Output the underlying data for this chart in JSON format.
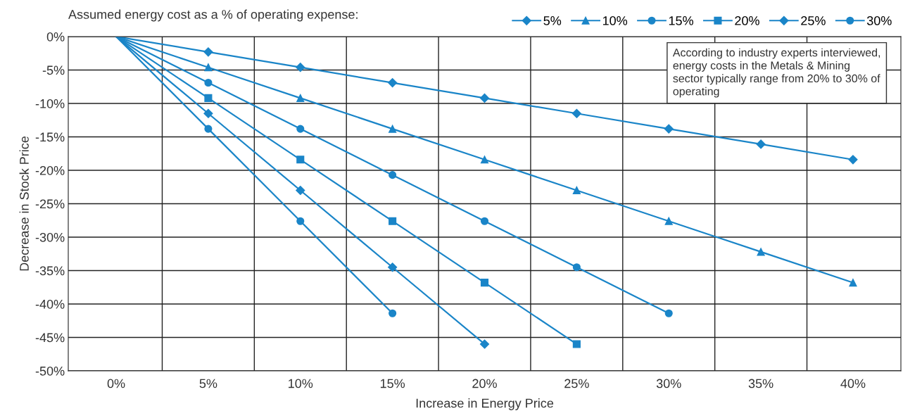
{
  "chart_data": {
    "type": "line",
    "legend_title": "Assumed energy cost as a % of operating expense:",
    "xlabel": "Increase in Energy Price",
    "ylabel": "Decrease in Stock Price",
    "categories": [
      "0%",
      "5%",
      "10%",
      "15%",
      "20%",
      "25%",
      "30%",
      "35%",
      "40%"
    ],
    "series": [
      {
        "name": "5%",
        "color": "#1a85c8",
        "marker": "diamond",
        "values": [
          0,
          -2.3,
          -4.6,
          -6.9,
          -9.2,
          -11.5,
          -13.8,
          -16.1,
          -18.4
        ]
      },
      {
        "name": "10%",
        "color": "#1a85c8",
        "marker": "triangle",
        "values": [
          0,
          -4.6,
          -9.2,
          -13.8,
          -18.4,
          -23,
          -27.6,
          -32.2,
          -36.8
        ]
      },
      {
        "name": "15%",
        "color": "#1a85c8",
        "marker": "circle",
        "values": [
          0,
          -6.9,
          -13.8,
          -20.7,
          -27.6,
          -34.5,
          -41.4,
          null,
          null
        ]
      },
      {
        "name": "20%",
        "color": "#1a85c8",
        "marker": "square",
        "values": [
          0,
          -9.2,
          -18.4,
          -27.6,
          -36.8,
          -46,
          null,
          null,
          null
        ]
      },
      {
        "name": "25%",
        "color": "#1a85c8",
        "marker": "diamond",
        "values": [
          0,
          -11.5,
          -23,
          -34.5,
          -46,
          null,
          null,
          null,
          null
        ]
      },
      {
        "name": "30%",
        "color": "#1a85c8",
        "marker": "circle",
        "values": [
          0,
          -13.8,
          -27.6,
          -41.4,
          null,
          null,
          null,
          null,
          null
        ]
      }
    ],
    "ylim": [
      -50,
      0
    ],
    "yticks": [
      {
        "value": -50,
        "label": "-50%"
      },
      {
        "value": -45,
        "label": "-45%"
      },
      {
        "value": -40,
        "label": "-40%"
      },
      {
        "value": -35,
        "label": "-35%"
      },
      {
        "value": -30,
        "label": "-30%"
      },
      {
        "value": -25,
        "label": "-25%"
      },
      {
        "value": -20,
        "label": "-20%"
      },
      {
        "value": -15,
        "label": "-15%"
      },
      {
        "value": -10,
        "label": "-10%"
      },
      {
        "value": -5,
        "label": "-5%"
      },
      {
        "value": 0,
        "label": "0%"
      }
    ],
    "grid": true,
    "legend": "top right",
    "line_style": "solid",
    "annotations": [
      "According to industry experts interviewed, energy costs in the Metals & Mining sector typically range from 20% to 30% of operating"
    ]
  }
}
